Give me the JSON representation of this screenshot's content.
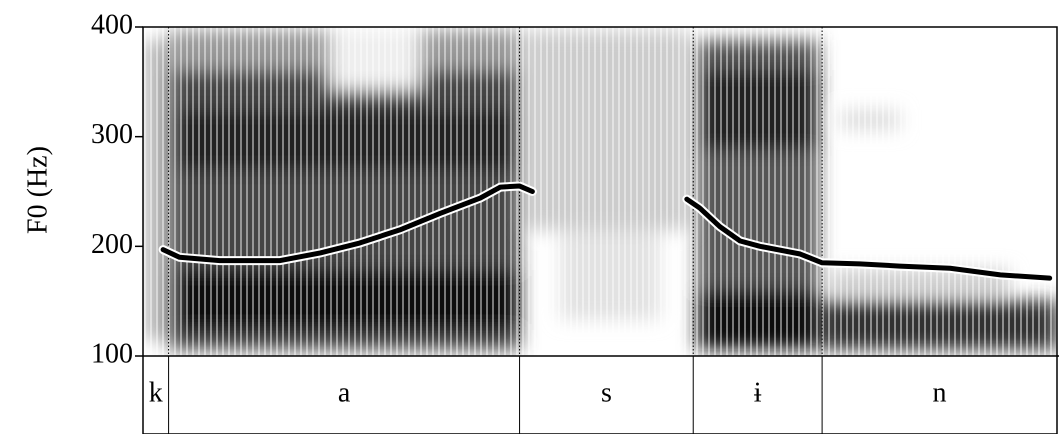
{
  "chart_data": {
    "type": "line",
    "y_label": "F0 (Hz)",
    "ylim": [
      100,
      400
    ],
    "yticks": [
      100,
      200,
      300,
      400
    ],
    "xlim": [
      0,
      1
    ],
    "x": [
      0.022,
      0.04,
      0.084,
      0.15,
      0.194,
      0.237,
      0.281,
      0.325,
      0.369,
      0.391,
      0.412,
      0.426,
      null,
      0.595,
      0.609,
      0.631,
      0.653,
      0.675,
      0.719,
      0.743,
      0.784,
      0.828,
      0.883,
      0.938,
      0.992
    ],
    "series": [
      {
        "color": "#000000",
        "values": [
          197,
          190,
          187,
          187,
          194,
          203,
          215,
          230,
          244,
          254,
          255,
          250,
          null,
          243,
          235,
          218,
          205,
          200,
          193,
          185,
          184,
          182,
          180,
          174,
          171
        ]
      }
    ],
    "segments": [
      {
        "label": "k",
        "start": 0,
        "end": 0.028
      },
      {
        "label": "a",
        "start": 0.028,
        "end": 0.412
      },
      {
        "label": "s",
        "start": 0.412,
        "end": 0.602
      },
      {
        "label": "ɨ",
        "start": 0.602,
        "end": 0.743
      },
      {
        "label": "n",
        "start": 0.743,
        "end": 1
      }
    ]
  }
}
